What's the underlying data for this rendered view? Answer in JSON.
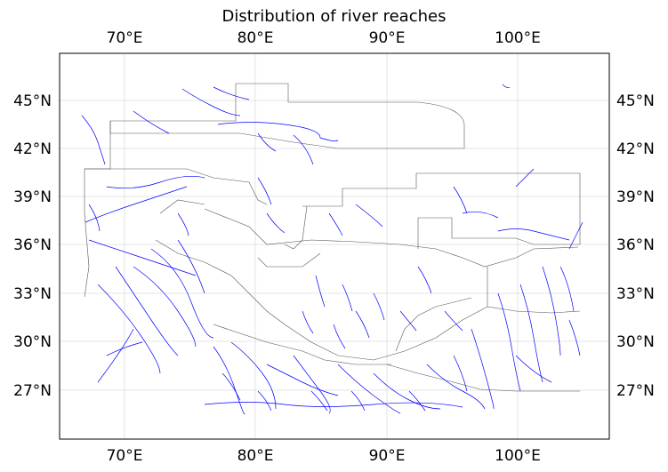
{
  "title": "Distribution of river reaches",
  "axes": {
    "lon_ticks": [
      "70°E",
      "80°E",
      "90°E",
      "100°E"
    ],
    "lat_ticks": [
      "45°N",
      "42°N",
      "39°N",
      "36°N",
      "33°N",
      "30°N",
      "27°N"
    ]
  },
  "colors": {
    "rivers": "#0000ff",
    "boundaries": "#555555",
    "grid": "#dddddd",
    "frame": "#000000"
  }
}
